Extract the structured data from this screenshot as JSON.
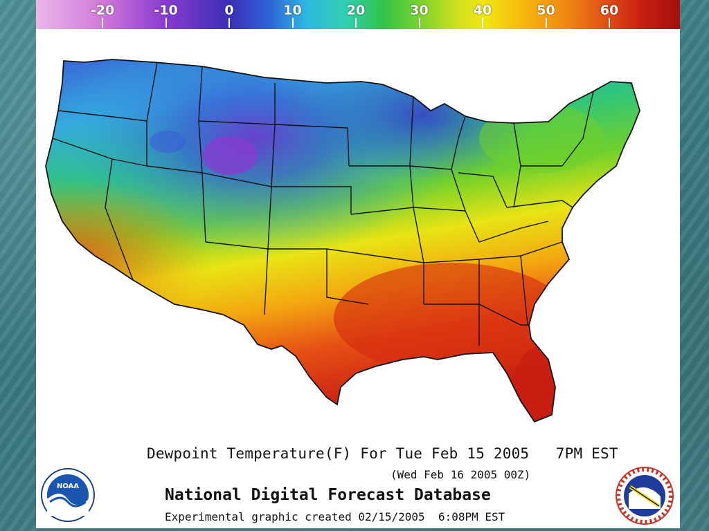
{
  "colorbar": {
    "ticks": [
      "-20",
      "-10",
      "0",
      "10",
      "20",
      "30",
      "40",
      "50",
      "60"
    ],
    "units": "F",
    "gradient": [
      "#eab8ea",
      "#d27ad9",
      "#8a3bd0",
      "#3b2fb5",
      "#2f60d7",
      "#2fb8e0",
      "#30c34a",
      "#d6e21f",
      "#f2e410",
      "#f08a12",
      "#c81e12",
      "#a40f0d"
    ]
  },
  "map": {
    "region": "contiguous-united-states",
    "variable": "dewpoint-temperature"
  },
  "footer": {
    "title": "Dewpoint Temperature(F) For Tue Feb 15 2005   7PM EST",
    "valid_time": "(Wed Feb 16 2005 00Z)",
    "database": "National Digital Forecast Database",
    "note": "Experimental graphic created 02/15/2005  6:08PM EST"
  },
  "logos": {
    "left": {
      "text": "NOAA",
      "icon": "noaa-logo-icon"
    },
    "right": {
      "text": "NATIONAL WEATHER SERVICE",
      "icon": "nws-logo-icon"
    }
  },
  "colors": {
    "background": "#3d7f86",
    "panel": "#ffffff"
  }
}
